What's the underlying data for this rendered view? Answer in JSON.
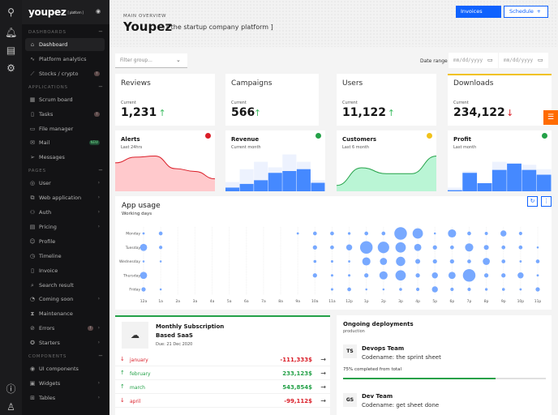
{
  "rail": {
    "top_icons": [
      "search-icon",
      "bell-icon",
      "chat-icon",
      "gear-icon"
    ],
    "bottom_icons": [
      "help-icon",
      "user-icon"
    ]
  },
  "sidebar": {
    "logo": "youpez",
    "logo_tag": "[ platform ]",
    "sections": [
      {
        "title": "DASHBOARDS",
        "items": [
          {
            "label": "Dashboard",
            "icon": "home-icon",
            "active": true
          },
          {
            "label": "Platform analytics",
            "icon": "pulse-icon"
          },
          {
            "label": "Stocks / crypto",
            "icon": "chart-line-icon",
            "badge": "!"
          }
        ]
      },
      {
        "title": "APPLICATIONS",
        "items": [
          {
            "label": "Scrum board",
            "icon": "board-icon"
          },
          {
            "label": "Tasks",
            "icon": "clipboard-icon",
            "badge": "!"
          },
          {
            "label": "File manager",
            "icon": "folder-icon"
          },
          {
            "label": "Mail",
            "icon": "mail-icon",
            "tag": "NEW"
          },
          {
            "label": "Messages",
            "icon": "send-icon"
          }
        ]
      },
      {
        "title": "PAGES",
        "items": [
          {
            "label": "User",
            "icon": "user-circle-icon",
            "chevron": true
          },
          {
            "label": "Web application",
            "icon": "web-app-icon",
            "chevron": true
          },
          {
            "label": "Auth",
            "icon": "auth-icon",
            "chevron": true
          },
          {
            "label": "Pricing",
            "icon": "pricing-icon",
            "chevron": true
          },
          {
            "label": "Profile",
            "icon": "face-icon"
          },
          {
            "label": "Timeline",
            "icon": "alarm-icon"
          },
          {
            "label": "Invoice",
            "icon": "document-icon"
          },
          {
            "label": "Search result",
            "icon": "search-doc-icon"
          },
          {
            "label": "Coming soon",
            "icon": "pie-icon",
            "chevron": true
          },
          {
            "label": "Maintenance",
            "icon": "hourglass-icon"
          },
          {
            "label": "Errors",
            "icon": "ban-icon",
            "chevron": true,
            "badge": "!"
          },
          {
            "label": "Starters",
            "icon": "starter-icon",
            "chevron": true
          }
        ]
      },
      {
        "title": "COMPONENTS",
        "items": [
          {
            "label": "UI components",
            "icon": "eye-icon"
          },
          {
            "label": "Widgets",
            "icon": "widget-icon",
            "chevron": true
          },
          {
            "label": "Tables",
            "icon": "table-icon",
            "chevron": true
          }
        ]
      }
    ]
  },
  "header": {
    "eyebrow": "MAIN OVERVIEW",
    "title": "Youpez",
    "subtitle": "[ the startup company platform ]",
    "invoices": "Invoices",
    "schedule": "Schedule",
    "schedule_icon": "+"
  },
  "filters": {
    "group_placeholder": "Filter group...",
    "date_label": "Date range",
    "date_from": "mm/dd/yyyy",
    "date_to": "mm/dd/yyyy"
  },
  "stats": [
    {
      "title": "Reviews",
      "label": "Current",
      "value": "1,231",
      "trend": "up"
    },
    {
      "title": "Campaigns",
      "label": "Current",
      "value": "566",
      "trend": "up"
    },
    {
      "title": "Users",
      "label": "Current",
      "value": "11,122",
      "trend": "up"
    },
    {
      "title": "Downloads",
      "label": "Current",
      "value": "234,122",
      "trend": "down"
    }
  ],
  "sparks": [
    {
      "title": "Alerts",
      "subtitle": "Last 24hrs",
      "status": "#da1e28",
      "type": "area",
      "color": "#da1e28",
      "fill": "#ffc9cc",
      "values": [
        5,
        6,
        6.2,
        4,
        3.5,
        2.2
      ]
    },
    {
      "title": "Revenue",
      "subtitle": "Current month",
      "status": "#24a148",
      "type": "bar",
      "values": [
        1,
        2,
        3,
        5,
        5.5,
        6,
        2.3
      ],
      "back": [
        2.5,
        6,
        8,
        6.5,
        10,
        8,
        3
      ]
    },
    {
      "title": "Customers",
      "subtitle": "Last 6 month",
      "status": "#f1c21b",
      "type": "area",
      "color": "#24a148",
      "fill": "#baf5d5",
      "values": [
        1,
        4,
        3,
        3,
        6
      ]
    },
    {
      "title": "Profit",
      "subtitle": "Last month",
      "status": "#24a148",
      "type": "bar",
      "values": [
        0.3,
        5,
        2.2,
        5.8,
        7.5,
        5.8,
        4.5
      ],
      "back": [
        1,
        5.5,
        2.2,
        8,
        7.7,
        7.2,
        6
      ]
    }
  ],
  "chart_data": {
    "type": "scatter",
    "title": "App usage",
    "subtitle": "Working days",
    "x": [
      "12a",
      "1a",
      "2a",
      "3a",
      "4a",
      "5a",
      "6a",
      "7a",
      "8a",
      "9a",
      "10a",
      "11a",
      "12p",
      "1p",
      "2p",
      "3p",
      "4p",
      "5p",
      "6p",
      "7p",
      "8p",
      "9p",
      "10p",
      "11p"
    ],
    "y": [
      "Monday",
      "Tuesday",
      "Wednesday",
      "Thursday",
      "Friday"
    ],
    "values": [
      [
        0.3,
        1,
        0,
        0,
        0,
        0,
        0,
        0,
        0,
        0.3,
        1,
        1,
        0.5,
        1,
        1,
        5,
        4,
        0.2,
        3,
        1,
        0.7,
        2,
        0.8,
        0
      ],
      [
        2.5,
        0.8,
        0,
        0,
        0,
        0,
        0,
        0,
        0,
        0,
        1.2,
        1,
        2,
        5,
        4.5,
        4,
        2.5,
        1.2,
        1,
        3,
        1.5,
        1,
        1,
        0.2
      ],
      [
        0.2,
        0.2,
        0,
        0,
        0,
        0,
        0,
        0,
        0,
        0,
        0.6,
        0.4,
        0.3,
        3,
        2.5,
        3.5,
        1.5,
        1.2,
        1.2,
        1,
        2.5,
        1,
        0.3,
        1
      ],
      [
        2.5,
        0,
        0,
        0,
        0,
        0,
        0,
        0,
        0,
        0,
        1.2,
        0.4,
        0.4,
        1.2,
        3,
        4,
        1.2,
        2,
        2.5,
        5,
        1.2,
        1.2,
        2,
        0.3
      ],
      [
        1.2,
        0.2,
        0,
        0,
        0,
        0,
        0,
        0,
        0,
        0,
        0,
        0.4,
        1,
        0.2,
        0.2,
        0.6,
        0.8,
        2,
        0.8,
        0.8,
        0.5,
        0.6,
        0.3,
        1.2
      ]
    ],
    "color": "#78a9ff",
    "grid": true
  },
  "subscription": {
    "title_line1": "Monthly Subscription",
    "title_line2": "Based SaaS",
    "due": "Due: 21 Dec 2020",
    "rows": [
      {
        "month": "january",
        "value": "-111,333$",
        "trend": "down"
      },
      {
        "month": "february",
        "value": "233,123$",
        "trend": "up"
      },
      {
        "month": "march",
        "value": "543,854$",
        "trend": "up"
      },
      {
        "month": "april",
        "value": "-99,112$",
        "trend": "down"
      }
    ]
  },
  "deployments": {
    "title": "Ongoing deployments",
    "subtitle": "production",
    "items": [
      {
        "initials": "TS",
        "team": "Devops Team",
        "codename": "Codename: the sprint sheet",
        "progress_text": "75% completed from total",
        "progress": 75
      },
      {
        "initials": "GS",
        "team": "Dev Team",
        "codename": "Codename: get sheet done"
      }
    ]
  },
  "colors": {
    "primary": "#0f62fe",
    "success": "#24a148",
    "danger": "#da1e28",
    "accent": "#ff6b00"
  }
}
